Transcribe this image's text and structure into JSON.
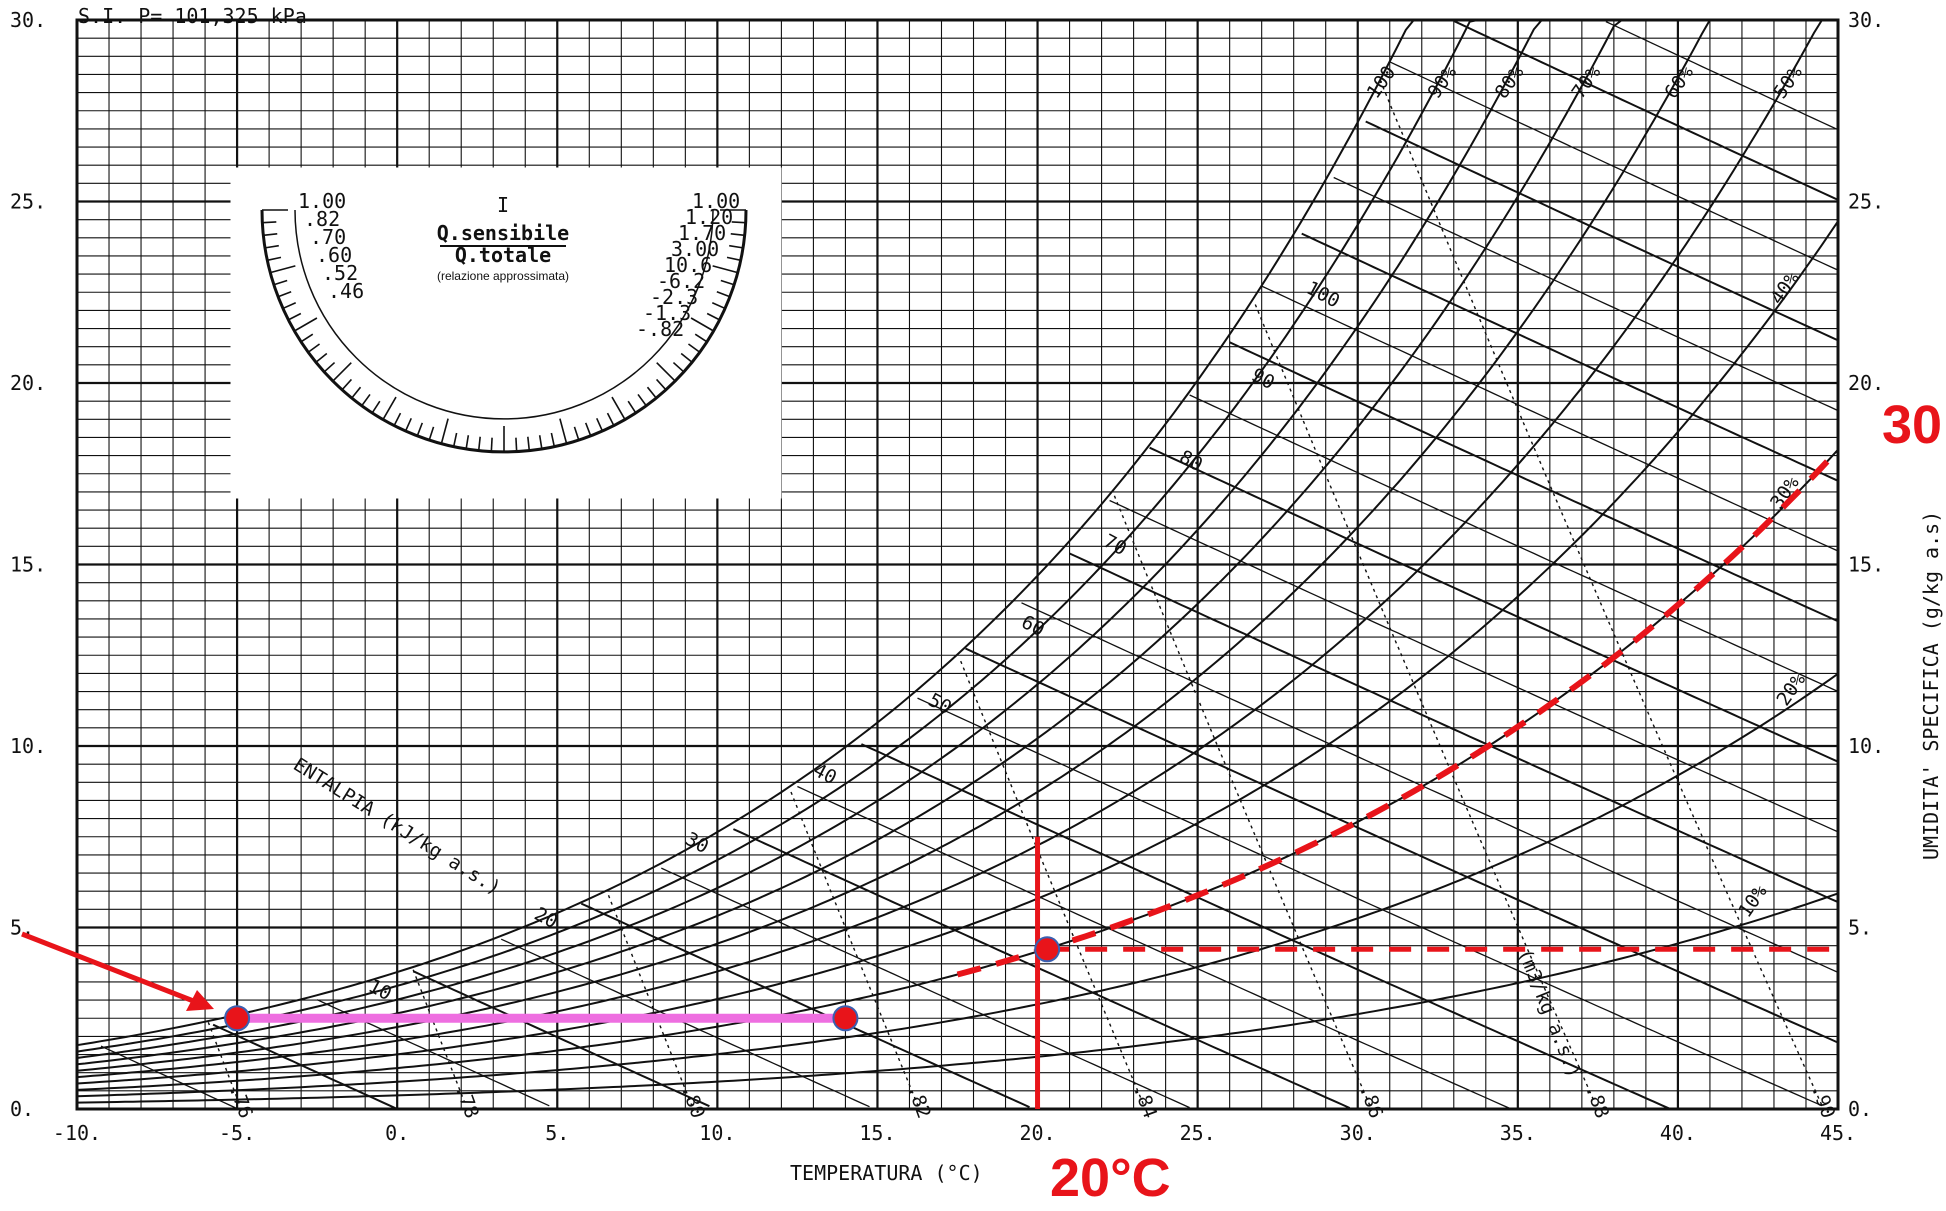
{
  "chart_data": {
    "type": "line",
    "header": "S.I. P= 101,325 kPa",
    "xlabel": "TEMPERATURA (°C)",
    "ylabel": "UMIDITA' SPECIFICA (g/kg a.s)",
    "xlim": [
      -10,
      45
    ],
    "ylim": [
      0,
      30
    ],
    "x_ticks": [
      "-10.",
      "-5.",
      "0.",
      "5.",
      "10.",
      "15.",
      "20.",
      "25.",
      "30.",
      "35.",
      "40.",
      "45."
    ],
    "y_ticks": [
      "0.",
      "5.",
      "10.",
      "15.",
      "20.",
      "25.",
      "30."
    ],
    "grid": true,
    "relative_humidity": {
      "series": [
        {
          "name": "10%",
          "rh": 10
        },
        {
          "name": "20%",
          "rh": 20
        },
        {
          "name": "30%",
          "rh": 30
        },
        {
          "name": "40%",
          "rh": 40
        },
        {
          "name": "50%",
          "rh": 50
        },
        {
          "name": "60%",
          "rh": 60
        },
        {
          "name": "70%",
          "rh": 70
        },
        {
          "name": "80%",
          "rh": 80
        },
        {
          "name": "90%",
          "rh": 90
        },
        {
          "name": "100",
          "rh": 100
        }
      ]
    },
    "enthalpy": {
      "label": "ENTALPIA (kJ/kg a.s.)",
      "values": [
        10,
        20,
        30,
        40,
        50,
        60,
        70,
        80,
        90,
        100
      ]
    },
    "specific_volume": {
      "label": "(m3/kg a.s.)",
      "values": [
        ".76",
        ".78",
        ".80",
        ".82",
        ".84",
        ".86",
        ".88",
        ".90"
      ]
    },
    "protractor": {
      "title_top": "I",
      "numerator": "Q.sensibile",
      "denominator": "Q.totale",
      "note": "(relazione approssimata)",
      "left_scale": [
        "1.00",
        ".82",
        ".70",
        ".60",
        ".52",
        ".46"
      ],
      "right_scale": [
        "1.00",
        "1.20",
        "1.70",
        "3.00",
        "10.6",
        "-6.2",
        "-2.3",
        "-1.3",
        "-.82"
      ]
    },
    "overlay": {
      "segment_magenta": {
        "x": [
          -5,
          14
        ],
        "y": [
          2.5,
          2.5
        ],
        "color": "#ee6ee0"
      },
      "point_a": {
        "x": -5,
        "y": 2.5
      },
      "point_b": {
        "x": 14,
        "y": 2.5
      },
      "point_c": {
        "x": 20.3,
        "y": 4.4
      },
      "vertical_red": {
        "x": 20,
        "y": [
          0,
          7.5
        ]
      },
      "horizontal_dashed": {
        "y": 4.4,
        "x": [
          20.3,
          44.8
        ]
      },
      "curve_dashed_rh": 30,
      "label_temperature": "20°C",
      "label_curve": "30",
      "color": "#e8141a"
    }
  }
}
